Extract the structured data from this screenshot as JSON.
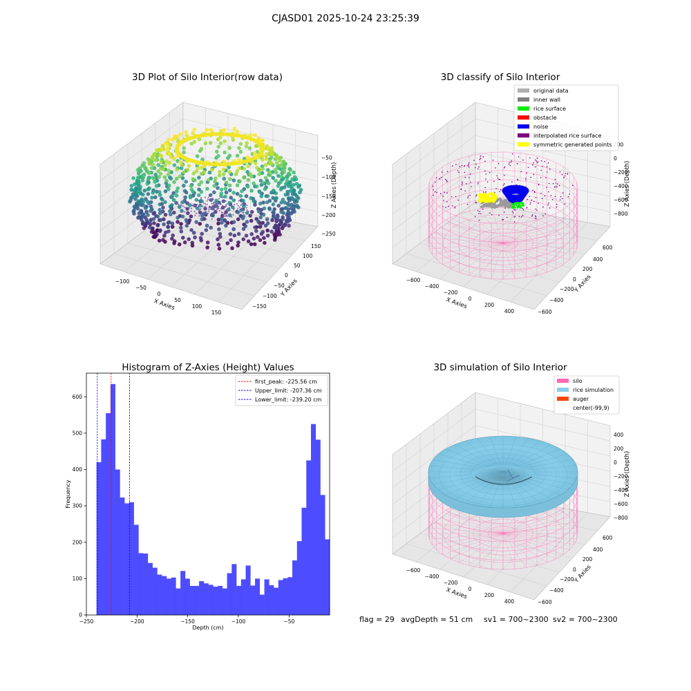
{
  "figure": {
    "suptitle": "CJASD01 2025-10-24 23:25:39"
  },
  "colors": {
    "pane_left": "#ececec",
    "pane_right": "#f2f2f2",
    "pane_floor": "#e6e6e6",
    "grid": "#d0d0d0",
    "bar": "#4d4dff",
    "silo": "#ff69b4",
    "rice": "#87ceeb",
    "auger": "#ff4500",
    "yellow": "#ffff00",
    "blue": "#0000ee",
    "gray": "#9a9a9a",
    "green": "#00ee00",
    "purple": "#800080"
  },
  "chart_data": [
    {
      "id": "raw",
      "type": "scatter3d",
      "title": "3D Plot of Silo Interior(row data)",
      "xlabel": "X Axies",
      "ylabel": "Y Axies",
      "zlabel": "Z Axies (Depth)",
      "xticks": [
        "−100",
        "−50",
        "0",
        "50",
        "100",
        "150"
      ],
      "yticks": [
        "150",
        "100",
        "50",
        "0",
        "−50",
        "−100",
        "−150"
      ],
      "zticks": [
        "−50",
        "−100",
        "−150",
        "−200",
        "−250"
      ],
      "colormap": "viridis",
      "zlim": [
        -260,
        -20
      ]
    },
    {
      "id": "classify",
      "type": "scatter3d",
      "title": "3D classify of Silo Interior",
      "xlabel": "X Axies",
      "ylabel": "Y Axies",
      "zlabel": "Z Axies (Depth)",
      "xticks": [
        "−600",
        "−400",
        "−200",
        "0",
        "200",
        "400"
      ],
      "yticks": [
        "600",
        "400",
        "200",
        "0",
        "−200",
        "−400",
        "−600"
      ],
      "zticks": [
        "200",
        "0",
        "−200",
        "−400",
        "−600",
        "−800"
      ],
      "legend_position": "top-right",
      "legend": [
        {
          "label": "original data",
          "color": "#b0b0b0"
        },
        {
          "label": "inner wall",
          "color": "#808080"
        },
        {
          "label": "rice surface",
          "color": "#00ee00"
        },
        {
          "label": "obstacle",
          "color": "#ff0000"
        },
        {
          "label": "noise",
          "color": "#0000ee"
        },
        {
          "label": "interpolated rice surface",
          "color": "#800080"
        },
        {
          "label": "symmetric generated points",
          "color": "#ffff00"
        }
      ]
    },
    {
      "id": "histogram",
      "type": "bar",
      "title": "Histogram of Z-Axies (Height) Values",
      "xlabel": "Depth (cm)",
      "ylabel": "Frequency",
      "xlim": [
        -250,
        -10
      ],
      "ylim": [
        0,
        665
      ],
      "xticks": [
        -250,
        -200,
        -150,
        -100,
        -50
      ],
      "yticks": [
        0,
        100,
        200,
        300,
        400,
        500,
        600
      ],
      "bin_start": -240,
      "bin_width": 4.6,
      "values": [
        420,
        483,
        555,
        635,
        400,
        323,
        307,
        310,
        248,
        170,
        169,
        143,
        130,
        111,
        107,
        100,
        103,
        73,
        121,
        100,
        80,
        80,
        93,
        87,
        83,
        78,
        80,
        73,
        115,
        140,
        80,
        98,
        136,
        81,
        100,
        56,
        98,
        82,
        75,
        96,
        101,
        104,
        150,
        203,
        295,
        425,
        525,
        482,
        330,
        208
      ],
      "vlines": [
        {
          "label": "first_peak: -225.56 cm",
          "x": -225.56,
          "color": "#ff0000"
        },
        {
          "label": "Upper_limit: -207.36 cm",
          "x": -207.36,
          "color": "#0000ff"
        },
        {
          "label": "Lower_limit: -239.20 cm",
          "x": -239.2,
          "color": "#0000ff"
        }
      ],
      "legend_position": "top-right"
    },
    {
      "id": "simulation",
      "type": "surface3d",
      "title": "3D simulation of Silo Interior",
      "xlabel": "X Axies",
      "ylabel": "Y Axies",
      "zlabel": "Z Axies (Depth)",
      "xticks": [
        "−600",
        "−400",
        "−200",
        "0",
        "200",
        "400"
      ],
      "yticks": [
        "600",
        "400",
        "200",
        "0",
        "−200",
        "−400",
        "−600"
      ],
      "zticks": [
        "400",
        "200",
        "0",
        "−200",
        "−400",
        "−600",
        "−800"
      ],
      "legend_position": "top-right",
      "legend": [
        {
          "label": "silo",
          "color": "#ff69b4"
        },
        {
          "label": "rice simulation",
          "color": "#87ceeb"
        },
        {
          "label": "auger",
          "color": "#ff4500"
        },
        {
          "label": "center(-99,9)",
          "color": ""
        }
      ]
    }
  ],
  "status": {
    "flag": "flag = 29",
    "avg_depth": "avgDepth = 51 cm",
    "sv1": "sv1 = 700~2300",
    "sv2": "sv2 = 700~2300"
  }
}
